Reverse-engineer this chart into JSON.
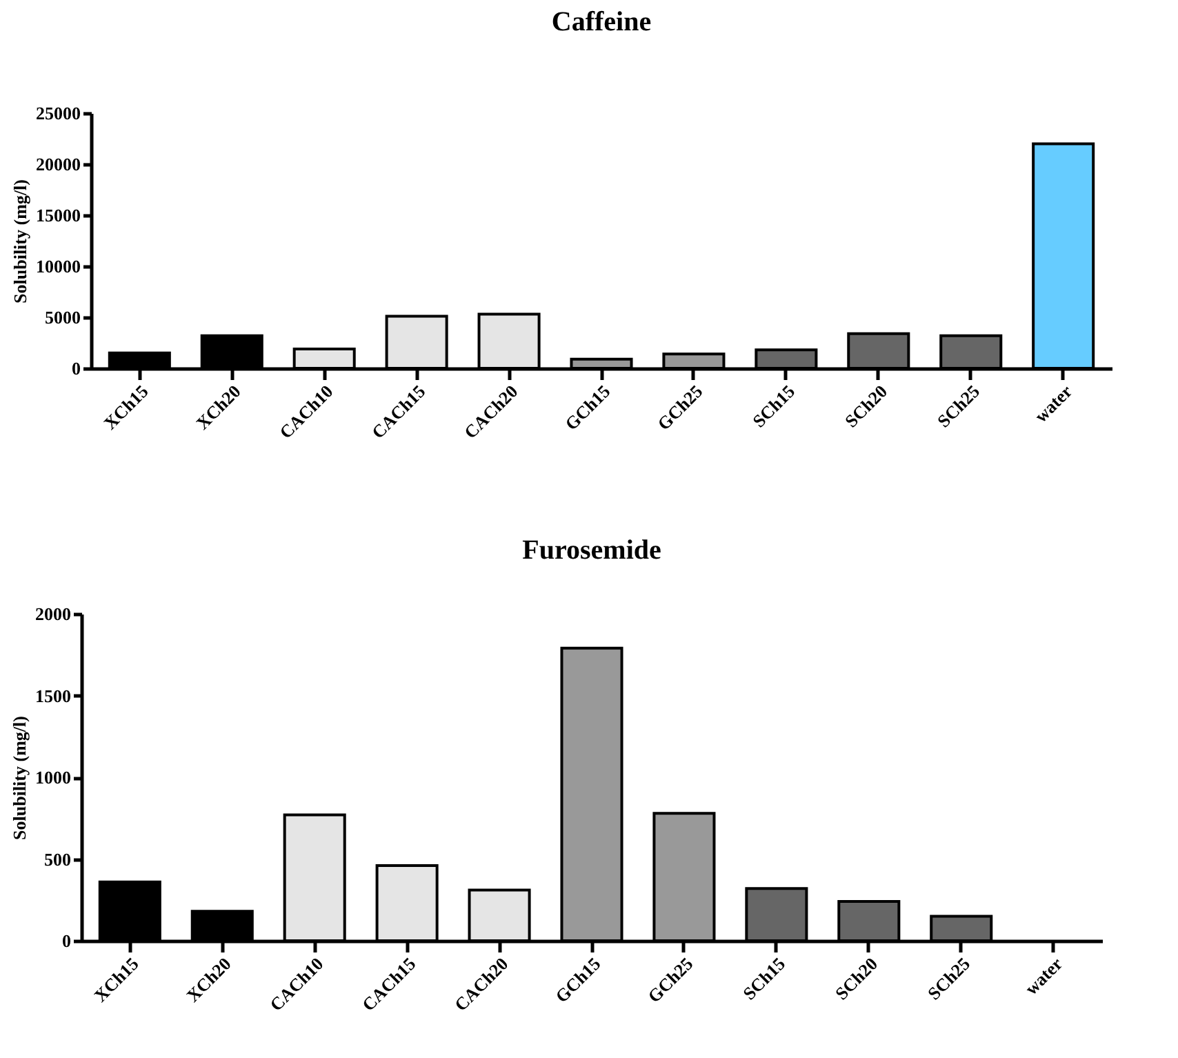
{
  "chart_data": [
    {
      "type": "bar",
      "title": "Caffeine",
      "ylabel": "Solubility (mg/l)",
      "categories": [
        "XCh15",
        "XCh20",
        "CACh10",
        "CACh15",
        "CACh20",
        "GCh15",
        "GCh25",
        "SCh15",
        "SCh20",
        "SCh25",
        "water"
      ],
      "values": [
        1500,
        3200,
        1900,
        5100,
        5300,
        900,
        1400,
        1800,
        3400,
        3200,
        22000
      ],
      "colors": [
        "#000000",
        "#000000",
        "#e5e5e5",
        "#e5e5e5",
        "#e5e5e5",
        "#999999",
        "#999999",
        "#666666",
        "#666666",
        "#666666",
        "#66ccff"
      ],
      "ylim": [
        0,
        25000
      ],
      "yticks": [
        0,
        5000,
        10000,
        15000,
        20000,
        25000
      ],
      "grid": false
    },
    {
      "type": "bar",
      "title": "Furosemide",
      "ylabel": "Solubility (mg/l)",
      "categories": [
        "XCh15",
        "XCh20",
        "CACh10",
        "CACh15",
        "CACh20",
        "GCh15",
        "GCh25",
        "SCh15",
        "SCh20",
        "SCh25",
        "water"
      ],
      "values": [
        360,
        180,
        770,
        460,
        310,
        1790,
        780,
        320,
        240,
        150,
        null
      ],
      "colors": [
        "#000000",
        "#000000",
        "#e5e5e5",
        "#e5e5e5",
        "#e5e5e5",
        "#999999",
        "#999999",
        "#666666",
        "#666666",
        "#666666",
        null
      ],
      "ylim": [
        0,
        2000
      ],
      "yticks": [
        0,
        500,
        1000,
        1500,
        2000
      ],
      "grid": false
    }
  ]
}
